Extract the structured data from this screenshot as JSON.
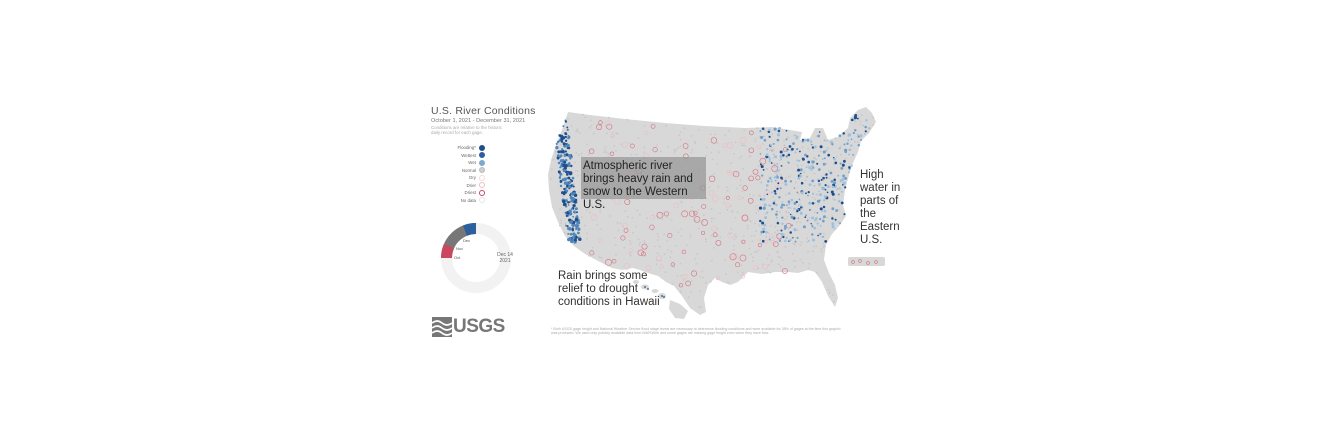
{
  "title": "U.S. River Conditions",
  "date_range": "October 1, 2021 - December 31, 2021",
  "note": "Conditions are relative to the historic daily record for each gage.",
  "legend": [
    {
      "label": "Flooding*",
      "fill": "#1f4e8c",
      "stroke": "#1f4e8c"
    },
    {
      "label": "Wettest",
      "fill": "#2b5f9e",
      "stroke": "#2b5f9e"
    },
    {
      "label": "Wet",
      "fill": "#7fa9cc",
      "stroke": "#7fa9cc"
    },
    {
      "label": "Normal",
      "fill": "#cfcfcf",
      "stroke": "#bbbbbb"
    },
    {
      "label": "Dry",
      "fill": "#ffffff",
      "stroke": "#f6d9dd"
    },
    {
      "label": "Drier",
      "fill": "#ffffff",
      "stroke": "#eebbc3"
    },
    {
      "label": "Driest",
      "fill": "#ffffff",
      "stroke": "#c9485f"
    },
    {
      "label": "No data",
      "fill": "#ffffff",
      "stroke": "#e6e6e6"
    }
  ],
  "dial": {
    "current_date": "Dec 14",
    "current_year": "2021",
    "months": [
      "Dec",
      "Nov",
      "Oct"
    ]
  },
  "annotations": {
    "west": "Atmospheric river brings heavy rain and snow to the Western U.S.",
    "east": "High water in parts of the Eastern U.S.",
    "hawaii": "Rain brings some relief to drought conditions in Hawaii"
  },
  "logo_text": "USGS",
  "footnote": "* Both USGS gage height and National Weather Service flood stage levels are necessary to determine flooding conditions and were available for 38% of gages at the time this graphic was produced. We used only publicly available data from NWISWeb and some gages are missing gage height even when they have flow.",
  "colors": {
    "land": "#d8d8d8",
    "wet": "#2b6aa8",
    "wettest": "#1f4e8c",
    "dry": "#d4707f",
    "annotation_box": "#959595",
    "logo": "#777777"
  }
}
